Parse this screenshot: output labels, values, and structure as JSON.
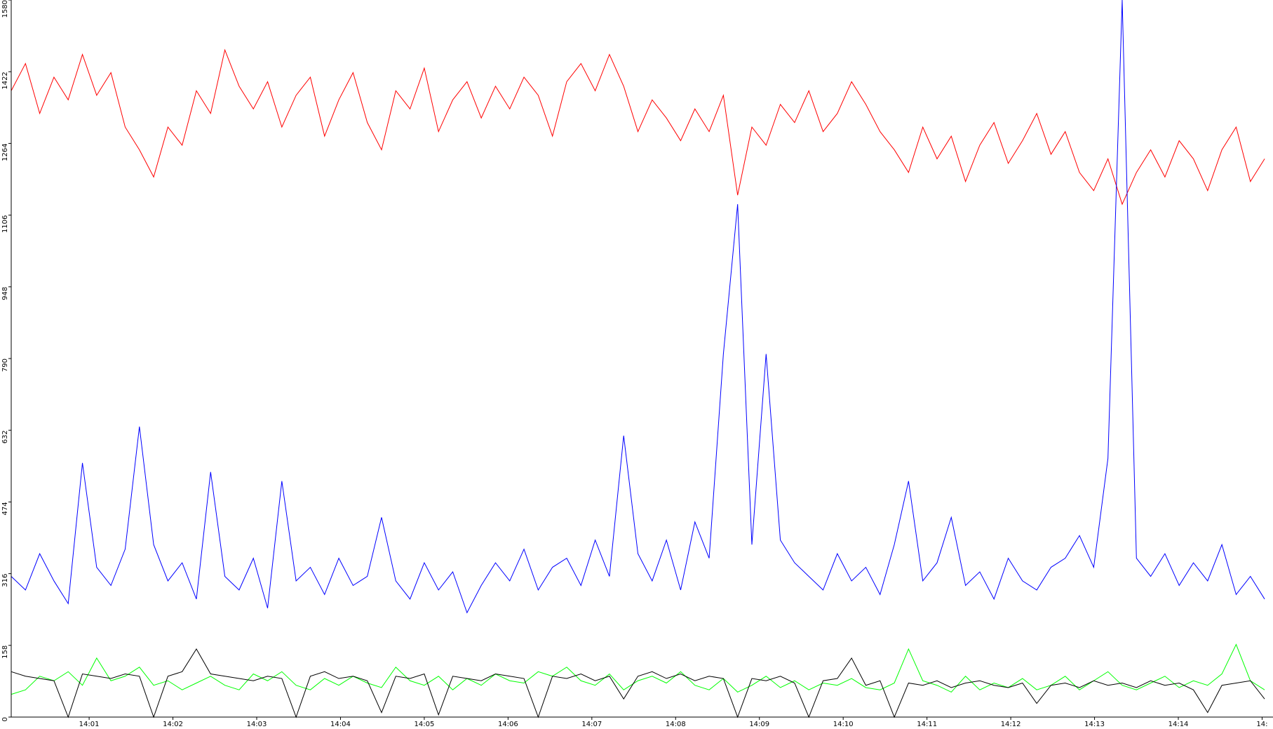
{
  "chart_data": {
    "type": "line",
    "x": [
      840.07,
      840.24,
      840.41,
      840.58,
      840.75,
      840.92,
      841.09,
      841.26,
      841.43,
      841.6,
      841.77,
      841.94,
      842.11,
      842.28,
      842.45,
      842.62,
      842.79,
      842.96,
      843.13,
      843.3,
      843.47,
      843.64,
      843.81,
      843.98,
      844.15,
      844.32,
      844.49,
      844.66,
      844.83,
      845.0,
      845.17,
      845.34,
      845.51,
      845.68,
      845.85,
      846.02,
      846.19,
      846.36,
      846.53,
      846.7,
      846.87,
      847.04,
      847.21,
      847.38,
      847.55,
      847.72,
      847.89,
      848.06,
      848.23,
      848.4,
      848.57,
      848.74,
      848.91,
      849.08,
      849.25,
      849.42,
      849.59,
      849.76,
      849.93,
      850.1,
      850.27,
      850.44,
      850.61,
      850.78,
      850.95,
      851.12,
      851.29,
      851.46,
      851.63,
      851.8,
      851.97,
      852.14,
      852.31,
      852.48,
      852.65,
      852.82,
      852.99,
      853.16,
      853.33,
      853.5,
      853.67,
      853.84,
      854.01,
      854.18,
      854.35,
      854.52,
      854.69,
      854.86,
      855.03
    ],
    "series": [
      {
        "color": "#ff0000",
        "values": [
          1380,
          1440,
          1330,
          1410,
          1360,
          1460,
          1370,
          1420,
          1300,
          1250,
          1190,
          1300,
          1260,
          1380,
          1330,
          1470,
          1390,
          1340,
          1400,
          1300,
          1370,
          1410,
          1280,
          1360,
          1420,
          1310,
          1250,
          1380,
          1340,
          1430,
          1290,
          1360,
          1400,
          1320,
          1390,
          1340,
          1410,
          1370,
          1280,
          1400,
          1440,
          1380,
          1460,
          1390,
          1290,
          1360,
          1320,
          1270,
          1340,
          1290,
          1370,
          1150,
          1300,
          1260,
          1350,
          1310,
          1380,
          1290,
          1330,
          1400,
          1350,
          1290,
          1250,
          1200,
          1300,
          1230,
          1280,
          1180,
          1260,
          1310,
          1220,
          1270,
          1330,
          1240,
          1290,
          1200,
          1160,
          1230,
          1130,
          1200,
          1250,
          1190,
          1270,
          1230,
          1160,
          1250,
          1300,
          1180,
          1230
        ]
      },
      {
        "color": "#0000ff",
        "values": [
          310,
          280,
          360,
          300,
          250,
          560,
          330,
          290,
          370,
          640,
          380,
          300,
          340,
          260,
          540,
          310,
          280,
          350,
          240,
          520,
          300,
          330,
          270,
          350,
          290,
          310,
          440,
          300,
          260,
          340,
          280,
          320,
          230,
          290,
          340,
          300,
          370,
          280,
          330,
          350,
          290,
          390,
          310,
          620,
          360,
          300,
          390,
          280,
          430,
          350,
          800,
          1130,
          380,
          800,
          390,
          340,
          310,
          280,
          360,
          300,
          330,
          270,
          380,
          520,
          300,
          340,
          440,
          290,
          320,
          260,
          350,
          300,
          280,
          330,
          350,
          400,
          330,
          570,
          1580,
          350,
          310,
          360,
          290,
          340,
          300,
          380,
          270,
          310,
          260
        ]
      },
      {
        "color": "#00ff00",
        "values": [
          50,
          60,
          90,
          80,
          100,
          70,
          130,
          80,
          90,
          110,
          70,
          80,
          60,
          75,
          90,
          70,
          60,
          95,
          80,
          100,
          70,
          60,
          85,
          70,
          90,
          75,
          65,
          110,
          80,
          70,
          90,
          60,
          85,
          70,
          95,
          80,
          75,
          100,
          90,
          110,
          80,
          70,
          95,
          60,
          80,
          90,
          75,
          100,
          70,
          60,
          85,
          55,
          70,
          90,
          65,
          80,
          60,
          75,
          70,
          85,
          65,
          60,
          75,
          150,
          80,
          70,
          55,
          90,
          60,
          75,
          65,
          85,
          60,
          70,
          90,
          60,
          80,
          100,
          70,
          60,
          75,
          90,
          65,
          80,
          70,
          95,
          160,
          80,
          60
        ]
      },
      {
        "color": "#000000",
        "values": [
          100,
          90,
          85,
          80,
          0,
          95,
          90,
          85,
          95,
          90,
          0,
          90,
          100,
          150,
          95,
          90,
          85,
          80,
          90,
          85,
          0,
          90,
          100,
          85,
          90,
          80,
          10,
          90,
          85,
          95,
          5,
          90,
          85,
          80,
          95,
          90,
          85,
          0,
          90,
          85,
          95,
          80,
          90,
          40,
          90,
          100,
          85,
          95,
          80,
          90,
          85,
          0,
          85,
          80,
          90,
          75,
          0,
          80,
          85,
          130,
          70,
          80,
          0,
          75,
          70,
          80,
          65,
          75,
          80,
          70,
          65,
          75,
          30,
          70,
          75,
          65,
          80,
          70,
          75,
          65,
          80,
          70,
          75,
          60,
          10,
          70,
          75,
          80,
          40
        ]
      }
    ],
    "xlim": [
      840.07,
      855.13
    ],
    "xticks": [
      {
        "value": 841,
        "label": "14:01"
      },
      {
        "value": 842,
        "label": "14:02"
      },
      {
        "value": 843,
        "label": "14:03"
      },
      {
        "value": 844,
        "label": "14:04"
      },
      {
        "value": 845,
        "label": "14:05"
      },
      {
        "value": 846,
        "label": "14:06"
      },
      {
        "value": 847,
        "label": "14:07"
      },
      {
        "value": 848,
        "label": "14:08"
      },
      {
        "value": 849,
        "label": "14:09"
      },
      {
        "value": 850,
        "label": "14:10"
      },
      {
        "value": 851,
        "label": "14:11"
      },
      {
        "value": 852,
        "label": "14:12"
      },
      {
        "value": 853,
        "label": "14:13"
      },
      {
        "value": 854,
        "label": "14:14"
      },
      {
        "value": 855,
        "label": "14:"
      }
    ],
    "ylim": [
      0,
      1580
    ],
    "yticks": [
      0,
      158,
      316,
      474,
      632,
      790,
      948,
      1106,
      1264,
      1422,
      1580
    ]
  }
}
